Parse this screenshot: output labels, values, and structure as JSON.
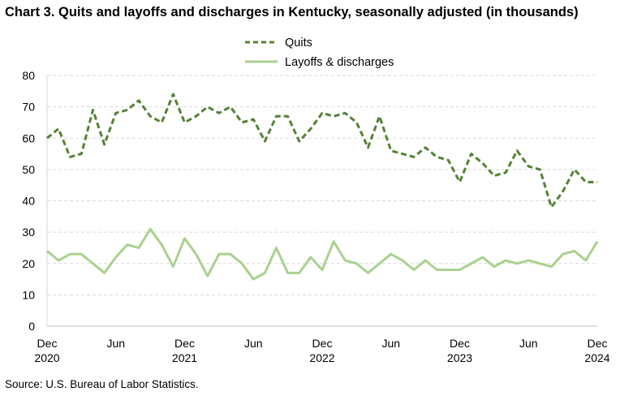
{
  "title": "Chart 3. Quits and layoffs and discharges in Kentucky, seasonally adjusted (in thousands)",
  "source": "Source: U.S. Bureau of Labor Statistics.",
  "chart_data": {
    "type": "line",
    "title": "Chart 3. Quits and layoffs and discharges in Kentucky, seasonally adjusted (in thousands)",
    "xlabel": "",
    "ylabel": "",
    "ylim": [
      0,
      80
    ],
    "yticks": [
      "0",
      "10",
      "20",
      "30",
      "40",
      "50",
      "60",
      "70",
      "80"
    ],
    "xticks": [
      {
        "month": "Dec",
        "year": "2020",
        "index": 0
      },
      {
        "month": "Jun",
        "year": "",
        "index": 6
      },
      {
        "month": "Dec",
        "year": "2021",
        "index": 12
      },
      {
        "month": "Jun",
        "year": "",
        "index": 18
      },
      {
        "month": "Dec",
        "year": "2022",
        "index": 24
      },
      {
        "month": "Jun",
        "year": "",
        "index": 30
      },
      {
        "month": "Dec",
        "year": "2023",
        "index": 36
      },
      {
        "month": "Jun",
        "year": "",
        "index": 42
      },
      {
        "month": "Dec",
        "year": "2024",
        "index": 48
      }
    ],
    "x": [
      "Dec 2020",
      "Jan 2021",
      "Feb 2021",
      "Mar 2021",
      "Apr 2021",
      "May 2021",
      "Jun 2021",
      "Jul 2021",
      "Aug 2021",
      "Sep 2021",
      "Oct 2021",
      "Nov 2021",
      "Dec 2021",
      "Jan 2022",
      "Feb 2022",
      "Mar 2022",
      "Apr 2022",
      "May 2022",
      "Jun 2022",
      "Jul 2022",
      "Aug 2022",
      "Sep 2022",
      "Oct 2022",
      "Nov 2022",
      "Dec 2022",
      "Jan 2023",
      "Feb 2023",
      "Mar 2023",
      "Apr 2023",
      "May 2023",
      "Jun 2023",
      "Jul 2023",
      "Aug 2023",
      "Sep 2023",
      "Oct 2023",
      "Nov 2023",
      "Dec 2023",
      "Jan 2024",
      "Feb 2024",
      "Mar 2024",
      "Apr 2024",
      "May 2024",
      "Jun 2024",
      "Jul 2024",
      "Aug 2024",
      "Sep 2024",
      "Oct 2024",
      "Nov 2024",
      "Dec 2024"
    ],
    "series": [
      {
        "name": "Quits",
        "color": "#548235",
        "style": "dashed",
        "values": [
          60,
          63,
          54,
          55,
          69,
          58,
          68,
          69,
          72,
          67,
          65,
          74,
          65,
          67,
          70,
          68,
          70,
          65,
          66,
          59,
          67,
          67,
          59,
          63,
          68,
          67,
          68,
          65,
          57,
          67,
          56,
          55,
          54,
          57,
          54,
          53,
          46,
          55,
          52,
          48,
          49,
          56,
          51,
          50,
          38,
          43,
          50,
          46,
          46
        ]
      },
      {
        "name": "Layoffs & discharges",
        "color": "#a9d18e",
        "style": "solid",
        "values": [
          24,
          21,
          23,
          23,
          20,
          17,
          22,
          26,
          25,
          31,
          26,
          19,
          28,
          23,
          16,
          23,
          23,
          20,
          15,
          17,
          25,
          17,
          17,
          22,
          18,
          27,
          21,
          20,
          17,
          20,
          23,
          21,
          18,
          21,
          18,
          18,
          18,
          20,
          22,
          19,
          21,
          20,
          21,
          20,
          19,
          23,
          24,
          21,
          27
        ]
      }
    ],
    "grid": true,
    "legend": "top-center"
  }
}
